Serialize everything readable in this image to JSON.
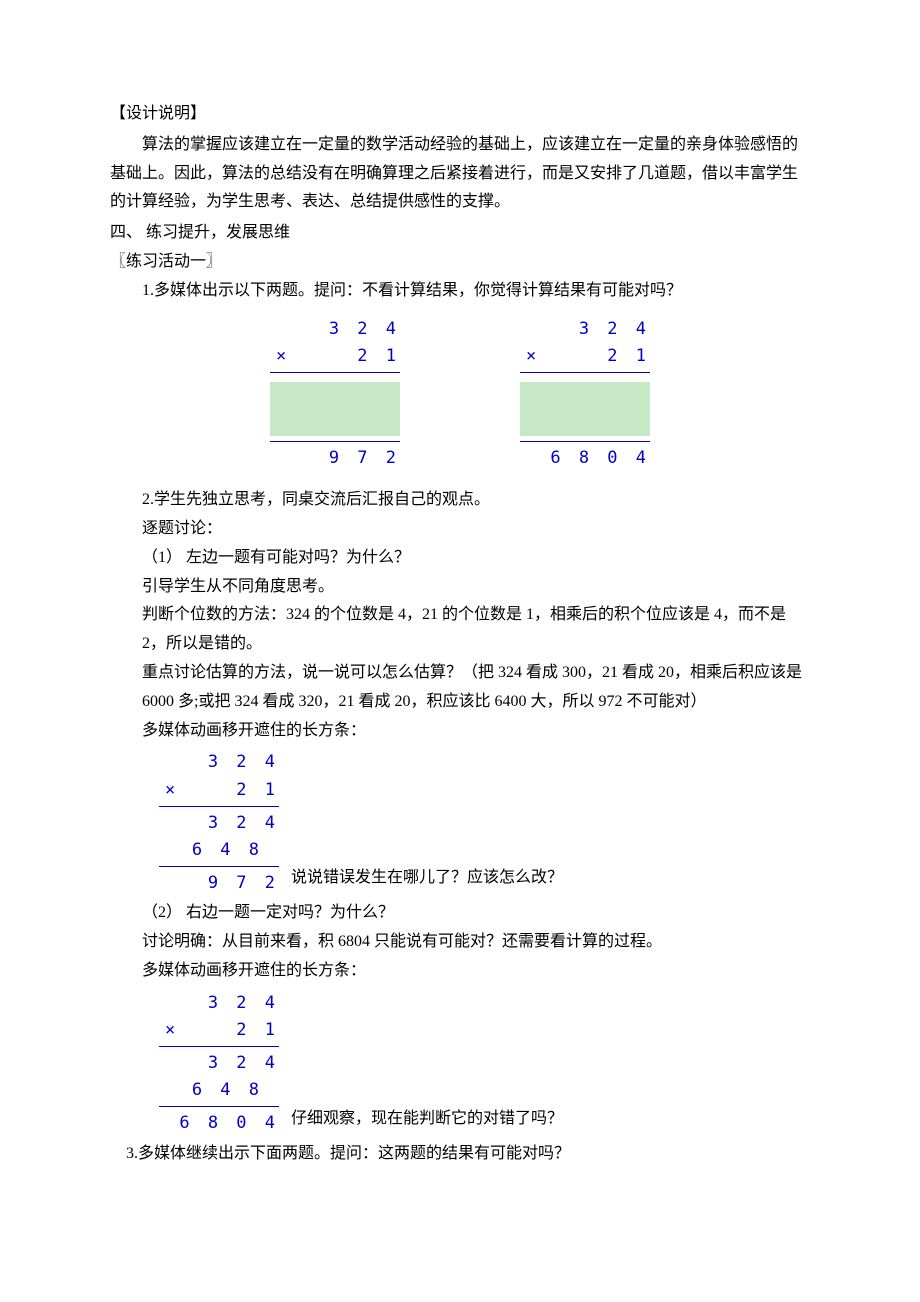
{
  "doc": {
    "heading1": "【设计说明】",
    "para1": "算法的掌握应该建立在一定量的数学活动经验的基础上，应该建立在一定量的亲身体验感悟的基础上。因此，算法的总结没有在明确算理之后紧接着进行，而是又安排了几道题，借以丰富学生的计算经验，为学生思考、表达、总结提供感性的支撑。",
    "section4_title": "四、 练习提升，发展思维",
    "activity1_title": "〖练习活动一〗",
    "item1_text": "1.多媒体出示以下两题。提问：不看计算结果，你觉得计算结果有可能对吗？",
    "problem_left": {
      "multiplicand": "3 2 4",
      "multiplier": "2 1",
      "mult_sign": "×",
      "result": "9 7 2"
    },
    "problem_right": {
      "multiplicand": "3 2 4",
      "multiplier": "2 1",
      "mult_sign": "×",
      "result": "6 8 0 4"
    },
    "item2_text": "2.学生先独立思考，同桌交流后汇报自己的观点。",
    "discuss_label": "逐题讨论：",
    "q1_label": "（1） 左边一题有可能对吗？为什么？",
    "q1_guide": "引导学生从不同角度思考。",
    "q1_method1": "判断个位数的方法：324 的个位数是 4，21 的个位数是 1，相乘后的积个位应该是 4，而不是 2，所以是错的。",
    "q1_method2": "重点讨论估算的方法，说一说可以怎么估算？（把 324 看成 300，21 看成 20，相乘后积应该是 6000 多;或把 324 看成 320，21 看成 20，积应该比 6400 大，所以 972 不可能对）",
    "q1_reveal": "多媒体动画移开遮住的长方条：",
    "problem_left_full": {
      "multiplicand": "3 2 4",
      "multiplier": "2 1",
      "mult_sign": "×",
      "partial1": "3 2 4",
      "partial2": "6 4 8",
      "result": "9 7 2"
    },
    "q1_after": "说说错误发生在哪儿了？应该怎么改？",
    "q2_label": "（2） 右边一题一定对吗？为什么？",
    "q2_discuss": "讨论明确：从目前来看，积 6804 只能说有可能对？还需要看计算的过程。",
    "q2_reveal": "多媒体动画移开遮住的长方条：",
    "problem_right_full": {
      "multiplicand": "3 2 4",
      "multiplier": "2 1",
      "mult_sign": "×",
      "partial1": "3 2 4",
      "partial2": "6 4 8",
      "result": "6 8 0 4"
    },
    "q2_after": "仔细观察，现在能判断它的对错了吗？",
    "item3_text": "3.多媒体继续出示下面两题。提问：这两题的结果有可能对吗？"
  },
  "style": {
    "math_color": "#0000cc",
    "green_bg": "#c6e8c6",
    "text_color": "#000000"
  }
}
